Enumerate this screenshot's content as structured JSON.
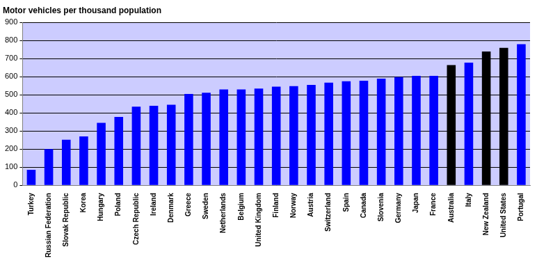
{
  "chart_data": {
    "type": "bar",
    "title": "Motor vehicles per thousand population",
    "categories": [
      "Turkey",
      "Russian Federation",
      "Slovak Republic",
      "Korea",
      "Hungary",
      "Poland",
      "Czech Republic",
      "Ireland",
      "Denmark",
      "Greece",
      "Sweden",
      "Netherlands",
      "Belgium",
      "United Kingdom",
      "Finland",
      "Norway",
      "Austria",
      "Switzerland",
      "Spain",
      "Canada",
      "Slovenia",
      "Germany",
      "Japan",
      "France",
      "Australia",
      "Italy",
      "New Zealand",
      "United States",
      "Portugal"
    ],
    "values": [
      85,
      200,
      252,
      270,
      345,
      378,
      435,
      440,
      445,
      505,
      512,
      530,
      530,
      535,
      545,
      548,
      555,
      568,
      575,
      578,
      590,
      598,
      605,
      605,
      665,
      678,
      740,
      760,
      780
    ],
    "colors": [
      "#0000ff",
      "#0000ff",
      "#0000ff",
      "#0000ff",
      "#0000ff",
      "#0000ff",
      "#0000ff",
      "#0000ff",
      "#0000ff",
      "#0000ff",
      "#0000ff",
      "#0000ff",
      "#0000ff",
      "#0000ff",
      "#0000ff",
      "#0000ff",
      "#0000ff",
      "#0000ff",
      "#0000ff",
      "#0000ff",
      "#0000ff",
      "#0000ff",
      "#0000ff",
      "#0000ff",
      "#000000",
      "#0000ff",
      "#000000",
      "#000000",
      "#0000ff"
    ],
    "ylim": [
      0,
      900
    ],
    "yticks": [
      0,
      100,
      200,
      300,
      400,
      500,
      600,
      700,
      800,
      900
    ],
    "grid": true
  }
}
